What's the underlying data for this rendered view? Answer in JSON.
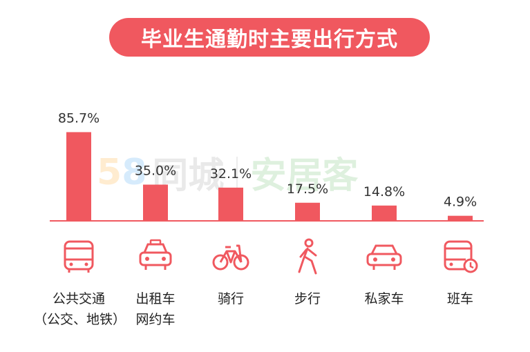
{
  "title": "毕业生通勤时主要出行方式",
  "watermark": {
    "part1": "5",
    "part2": "8",
    "tongcheng": "同城",
    "anjuke": "安居客"
  },
  "colors": {
    "accent": "#f0585f",
    "bar": "#f0585f",
    "text": "#333333"
  },
  "chart_data": {
    "type": "bar",
    "categories": [
      "公共交通（公交、地铁）",
      "出租车网约车",
      "骑行",
      "步行",
      "私家车",
      "班车"
    ],
    "category_lines": [
      [
        "公共交通",
        "（公交、地铁）"
      ],
      [
        "出租车",
        "网约车"
      ],
      [
        "骑行"
      ],
      [
        "步行"
      ],
      [
        "私家车"
      ],
      [
        "班车"
      ]
    ],
    "values": [
      85.7,
      35.0,
      32.1,
      17.5,
      14.8,
      4.9
    ],
    "value_labels": [
      "85.7%",
      "35.0%",
      "32.1%",
      "17.5%",
      "14.8%",
      "4.9%"
    ],
    "icons": [
      "bus-icon",
      "taxi-icon",
      "bicycle-icon",
      "walking-icon",
      "car-icon",
      "shuttle-bus-icon"
    ],
    "unit": "%",
    "grid": false,
    "legend": "none"
  }
}
